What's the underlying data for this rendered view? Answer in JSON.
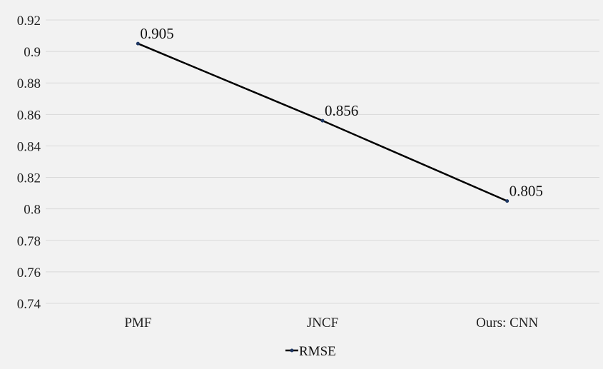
{
  "chart_data": {
    "type": "line",
    "title": "",
    "xlabel": "",
    "ylabel": "",
    "categories": [
      "PMF",
      "JNCF",
      "Ours: CNN"
    ],
    "series": [
      {
        "name": "RMSE",
        "values": [
          0.905,
          0.856,
          0.805
        ],
        "labels": [
          "0.905",
          "0.856",
          "0.805"
        ]
      }
    ],
    "ylim": [
      0.74,
      0.92
    ],
    "yticks": [
      0.74,
      0.76,
      0.78,
      0.8,
      0.82,
      0.84,
      0.86,
      0.88,
      0.9,
      0.92
    ],
    "ytick_labels": [
      "0.74",
      "0.76",
      "0.78",
      "0.8",
      "0.82",
      "0.84",
      "0.86",
      "0.88",
      "0.9",
      "0.92"
    ],
    "grid": true,
    "legend_position": "bottom",
    "colors": {
      "background": "#f2f2f2",
      "grid": "#d9d9d9",
      "line": "#000000",
      "marker": "#1f3864"
    }
  }
}
